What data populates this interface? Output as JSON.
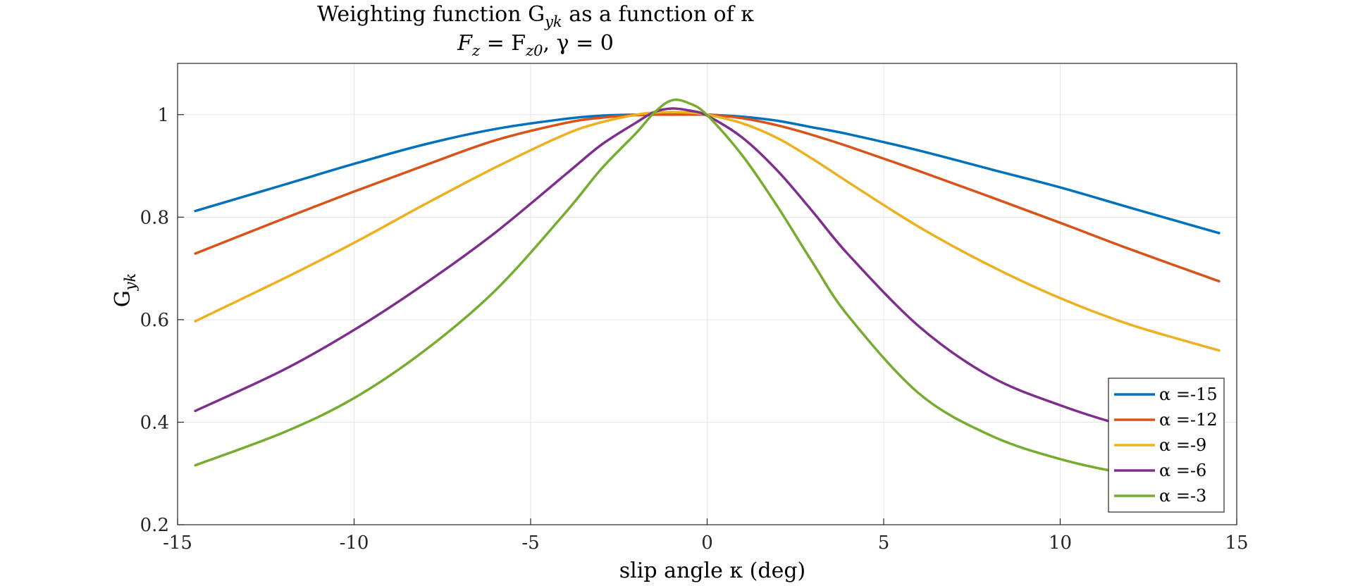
{
  "chart_data": {
    "type": "line",
    "title_line1_prefix": "Weighting function G",
    "title_line1_sub": "yk",
    "title_line1_suffix": " as a function of κ",
    "title_line2": "F",
    "title_line2_sub": "z",
    "title_line2_mid": " = F",
    "title_line2_sub2": "z0",
    "title_line2_suffix": ", γ = 0",
    "xlabel": "slip angle κ (deg)",
    "ylabel_main": "G",
    "ylabel_sub": "yk",
    "xlim": [
      -15,
      15
    ],
    "ylim": [
      0.2,
      1.1
    ],
    "xticks": [
      -15,
      -10,
      -5,
      0,
      5,
      10,
      15
    ],
    "xtick_labels": [
      "-15",
      "-10",
      "-5",
      "0",
      "5",
      "10",
      "15"
    ],
    "yticks": [
      0.2,
      0.4,
      0.6,
      0.8,
      1.0
    ],
    "ytick_labels": [
      "0.2",
      "0.4",
      "0.6",
      "0.8",
      "1"
    ],
    "grid": true,
    "legend_position": "bottom-right",
    "x": [
      -14.5,
      -12,
      -10,
      -8,
      -6,
      -4,
      -3,
      -2,
      -1.5,
      -1,
      -0.5,
      0,
      1,
      2,
      3,
      4,
      6,
      8,
      10,
      12,
      14.5
    ],
    "series": [
      {
        "name": "α =-15",
        "color": "#0072BD",
        "values": [
          0.812,
          0.863,
          0.904,
          0.942,
          0.972,
          0.992,
          0.998,
          1.0,
          1.0,
          1.0,
          1.0,
          1.0,
          0.996,
          0.988,
          0.975,
          0.962,
          0.93,
          0.894,
          0.858,
          0.818,
          0.769
        ]
      },
      {
        "name": "α =-12",
        "color": "#D95319",
        "values": [
          0.729,
          0.797,
          0.85,
          0.901,
          0.95,
          0.984,
          0.994,
          0.999,
          1.0,
          1.0,
          1.0,
          1.0,
          0.993,
          0.979,
          0.96,
          0.938,
          0.89,
          0.84,
          0.789,
          0.737,
          0.675
        ]
      },
      {
        "name": "α =-9",
        "color": "#EDB120",
        "values": [
          0.597,
          0.68,
          0.75,
          0.825,
          0.897,
          0.962,
          0.985,
          1.0,
          1.004,
          1.005,
          1.004,
          1.0,
          0.983,
          0.954,
          0.913,
          0.868,
          0.781,
          0.706,
          0.642,
          0.59,
          0.54
        ]
      },
      {
        "name": "α =-6",
        "color": "#7E2F8E",
        "values": [
          0.422,
          0.502,
          0.58,
          0.67,
          0.77,
          0.884,
          0.941,
          0.985,
          1.005,
          1.012,
          1.008,
          0.998,
          0.955,
          0.89,
          0.81,
          0.727,
          0.587,
          0.49,
          0.433,
          0.39,
          0.35
        ]
      },
      {
        "name": "α =-3",
        "color": "#77AC30",
        "values": [
          0.316,
          0.38,
          0.447,
          0.54,
          0.657,
          0.81,
          0.894,
          0.965,
          1.004,
          1.028,
          1.022,
          0.999,
          0.92,
          0.82,
          0.71,
          0.607,
          0.456,
          0.375,
          0.328,
          0.298,
          0.27
        ]
      }
    ]
  }
}
